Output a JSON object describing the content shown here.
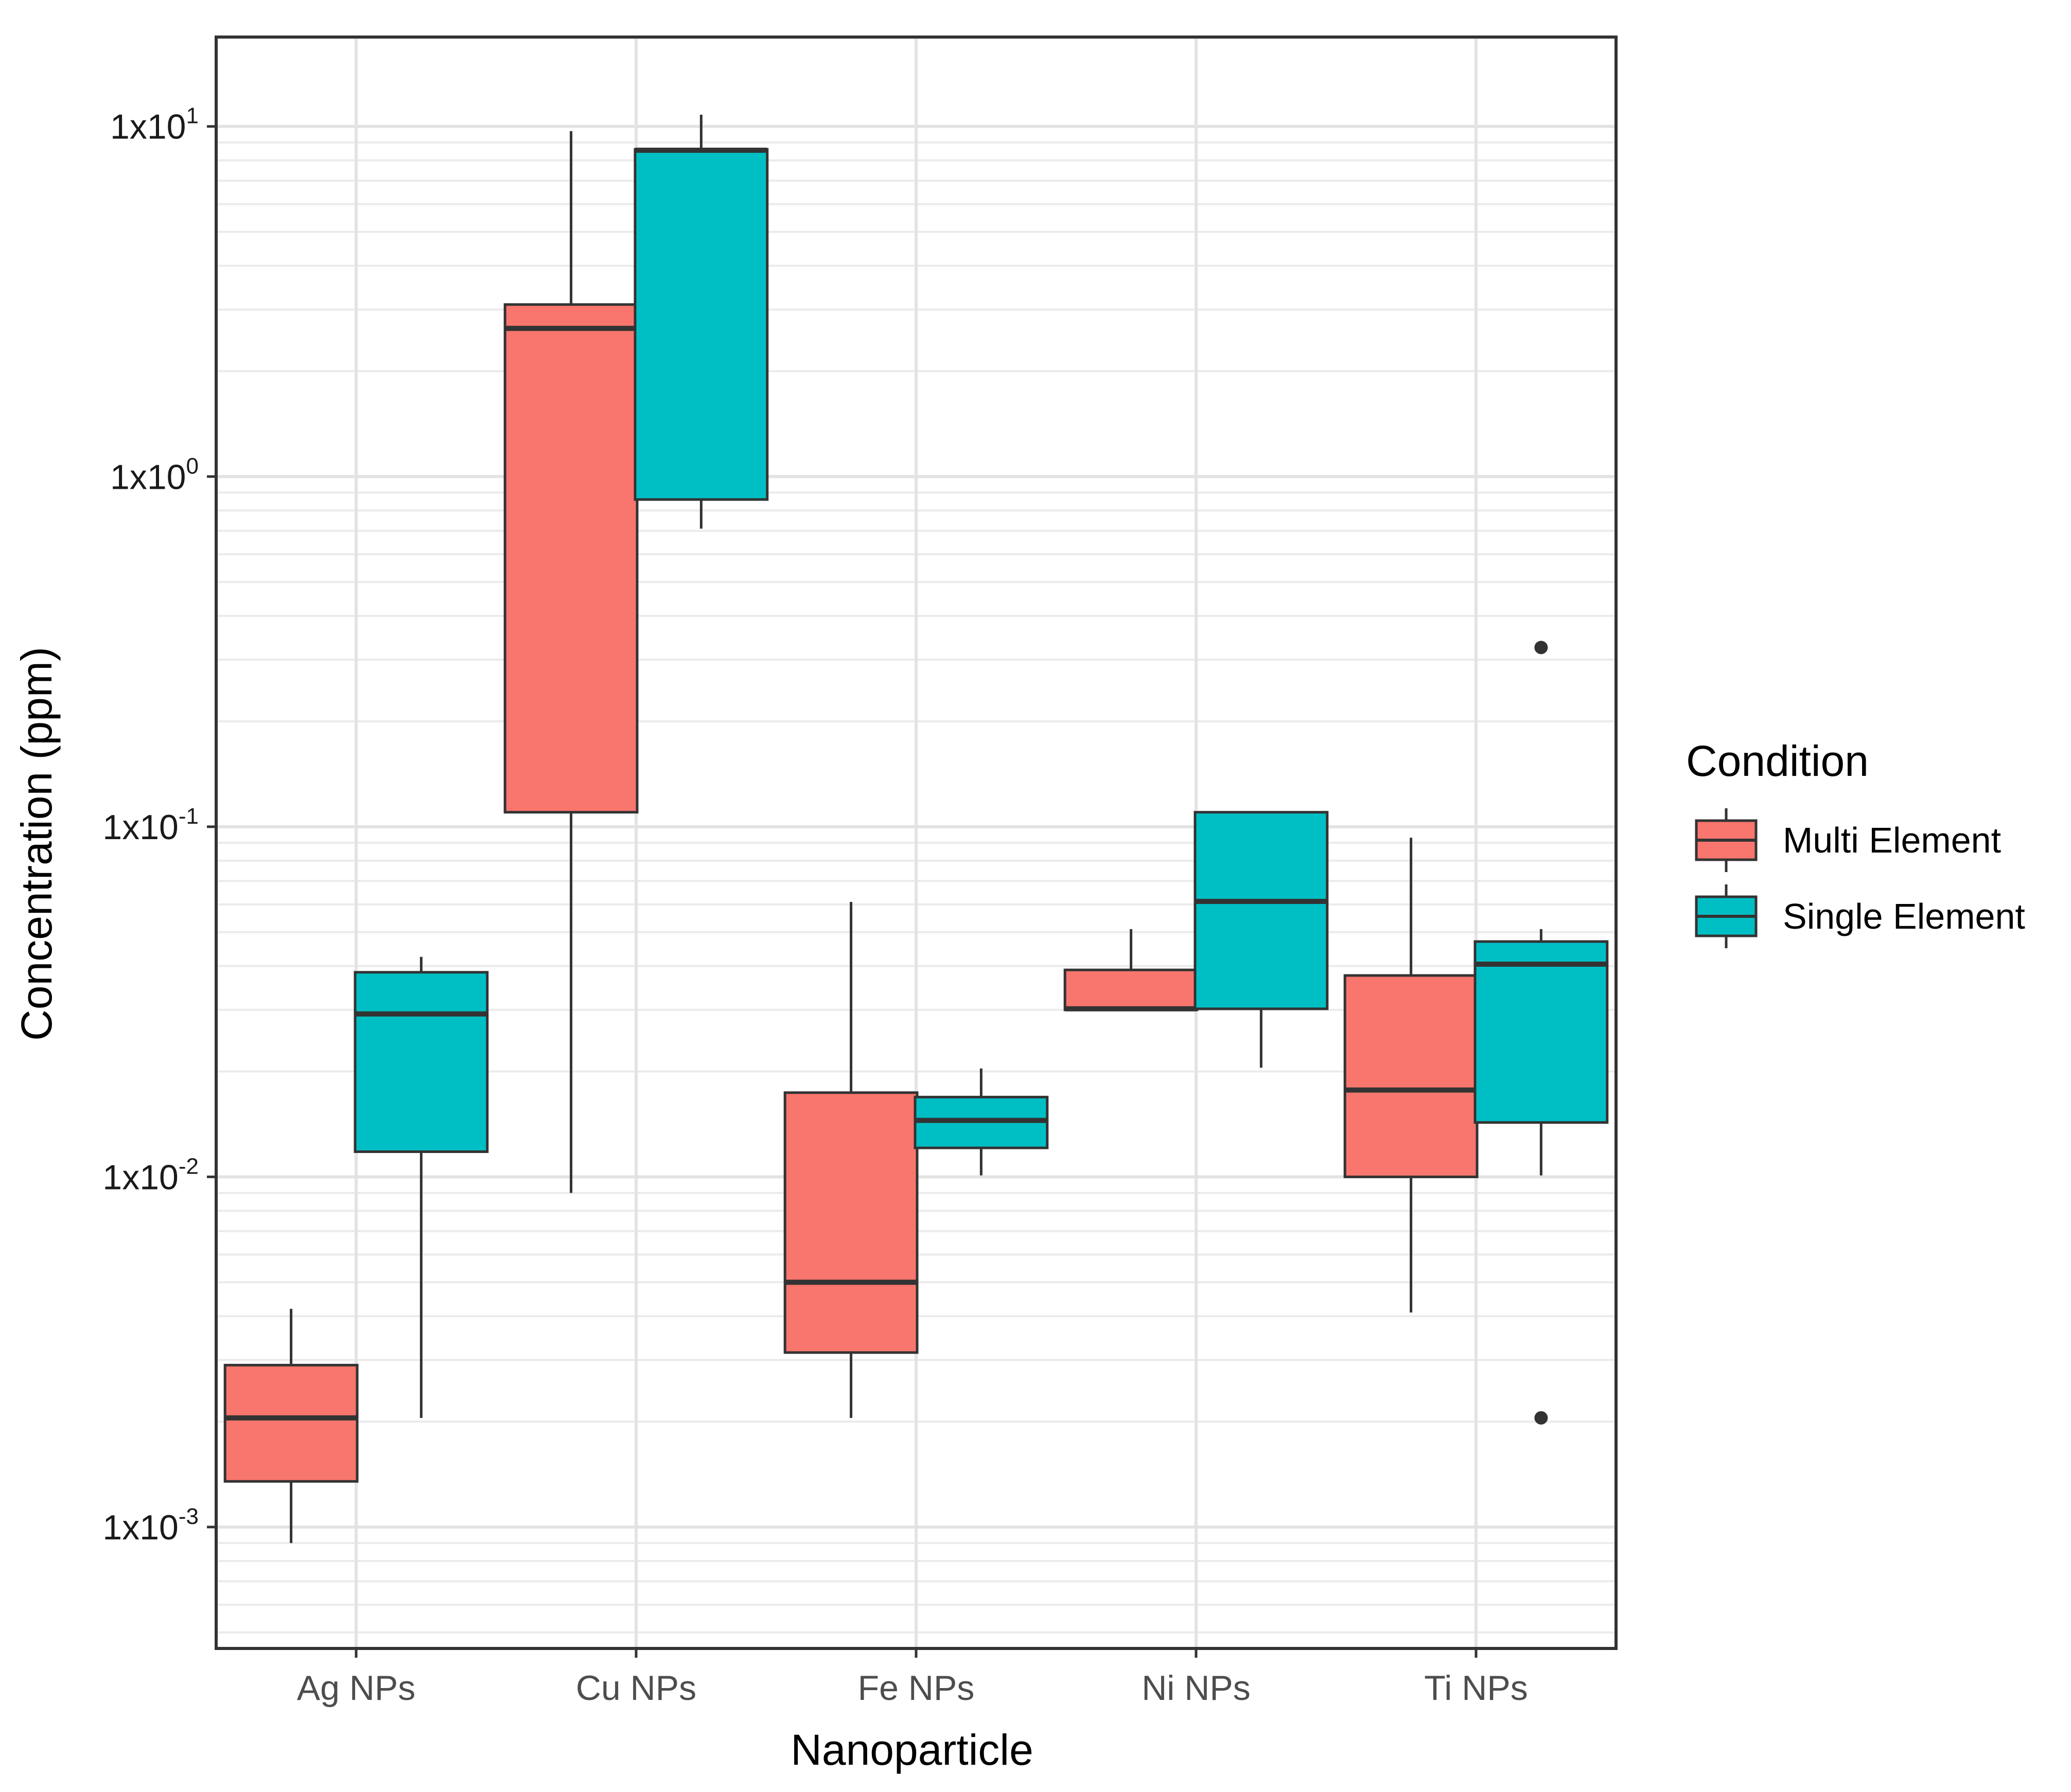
{
  "chart_data": {
    "type": "boxplot",
    "title": "",
    "xlabel": "Nanoparticle",
    "ylabel": "Concentration (ppm)",
    "y_scale": "log10",
    "ylim": [
      0.00045,
      18
    ],
    "y_ticks": [
      {
        "value": 10,
        "base": "1x10",
        "exp": "1"
      },
      {
        "value": 1,
        "base": "1x10",
        "exp": "0"
      },
      {
        "value": 0.1,
        "base": "1x10",
        "exp": "-1"
      },
      {
        "value": 0.01,
        "base": "1x10",
        "exp": "-2"
      },
      {
        "value": 0.001,
        "base": "1x10",
        "exp": "-3"
      }
    ],
    "categories": [
      "Ag NPs",
      "Cu NPs",
      "Fe NPs",
      "Ni NPs",
      "Ti NPs"
    ],
    "grid": true,
    "legend": {
      "title": "Condition",
      "position": "right",
      "entries": [
        {
          "name": "Multi Element",
          "color": "#F8766D"
        },
        {
          "name": "Single Element",
          "color": "#00BFC4"
        }
      ]
    },
    "series": [
      {
        "name": "Multi Element",
        "color": "#F8766D",
        "boxes": [
          {
            "category": "Ag NPs",
            "min": 0.0009,
            "q1": 0.00135,
            "median": 0.00205,
            "q3": 0.0029,
            "max": 0.0042,
            "outliers": []
          },
          {
            "category": "Cu NPs",
            "min": 0.009,
            "q1": 0.11,
            "median": 2.65,
            "q3": 3.1,
            "max": 9.7,
            "outliers": []
          },
          {
            "category": "Fe NPs",
            "min": 0.00205,
            "q1": 0.00315,
            "median": 0.005,
            "q3": 0.0174,
            "max": 0.061,
            "outliers": []
          },
          {
            "category": "Ni NPs",
            "min": 0.03,
            "q1": 0.03,
            "median": 0.0302,
            "q3": 0.039,
            "max": 0.051,
            "outliers": []
          },
          {
            "category": "Ti NPs",
            "min": 0.0041,
            "q1": 0.01,
            "median": 0.0177,
            "q3": 0.0376,
            "max": 0.093,
            "outliers": []
          }
        ]
      },
      {
        "name": "Single Element",
        "color": "#00BFC4",
        "boxes": [
          {
            "category": "Ag NPs",
            "min": 0.00205,
            "q1": 0.0118,
            "median": 0.0292,
            "q3": 0.0384,
            "max": 0.0425,
            "outliers": []
          },
          {
            "category": "Cu NPs",
            "min": 0.71,
            "q1": 0.86,
            "median": 8.55,
            "q3": 8.6,
            "max": 10.8,
            "outliers": []
          },
          {
            "category": "Fe NPs",
            "min": 0.0101,
            "q1": 0.0121,
            "median": 0.0145,
            "q3": 0.0169,
            "max": 0.0204,
            "outliers": []
          },
          {
            "category": "Ni NPs",
            "min": 0.0205,
            "q1": 0.0302,
            "median": 0.0612,
            "q3": 0.11,
            "max": 0.11,
            "outliers": []
          },
          {
            "category": "Ti NPs",
            "min": 0.0101,
            "q1": 0.0143,
            "median": 0.0405,
            "q3": 0.047,
            "max": 0.051,
            "outliers": [
              0.325,
              0.00205
            ]
          }
        ]
      }
    ]
  }
}
